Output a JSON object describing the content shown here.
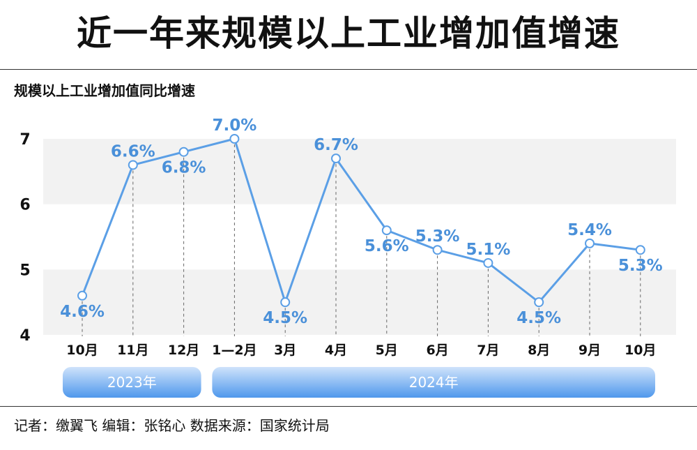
{
  "title": "近一年来规模以上工业增加值增速",
  "chart_data": {
    "type": "line",
    "subtitle": "规模以上工业增加值同比增速",
    "categories": [
      "10月",
      "11月",
      "12月",
      "1—2月",
      "3月",
      "4月",
      "5月",
      "6月",
      "7月",
      "8月",
      "9月",
      "10月"
    ],
    "values": [
      4.6,
      6.6,
      6.8,
      7.0,
      4.5,
      6.7,
      5.6,
      5.3,
      5.1,
      4.5,
      5.4,
      5.3
    ],
    "labels": [
      "4.6%",
      "6.6%",
      "6.8%",
      "7.0%",
      "4.5%",
      "6.7%",
      "5.6%",
      "5.3%",
      "5.1%",
      "4.5%",
      "5.4%",
      "5.3%"
    ],
    "label_side": [
      "below",
      "above",
      "below",
      "above",
      "below",
      "above",
      "below",
      "above",
      "above",
      "below",
      "above",
      "below"
    ],
    "ylim": [
      4,
      7
    ],
    "yticks": [
      "4",
      "5",
      "6",
      "7"
    ],
    "year_groups": [
      {
        "label": "2023年",
        "count": 3
      },
      {
        "label": "2024年",
        "count": 9
      }
    ],
    "colors": {
      "line": "#5b9fe6",
      "label": "#4a90d9",
      "band": "#f2f2f2",
      "year_bar_top": "#cfe3fb",
      "year_bar_bottom": "#4f98ec"
    }
  },
  "footer": {
    "credits": "记者：缴翼飞  编辑：张铭心  数据来源：国家统计局"
  }
}
